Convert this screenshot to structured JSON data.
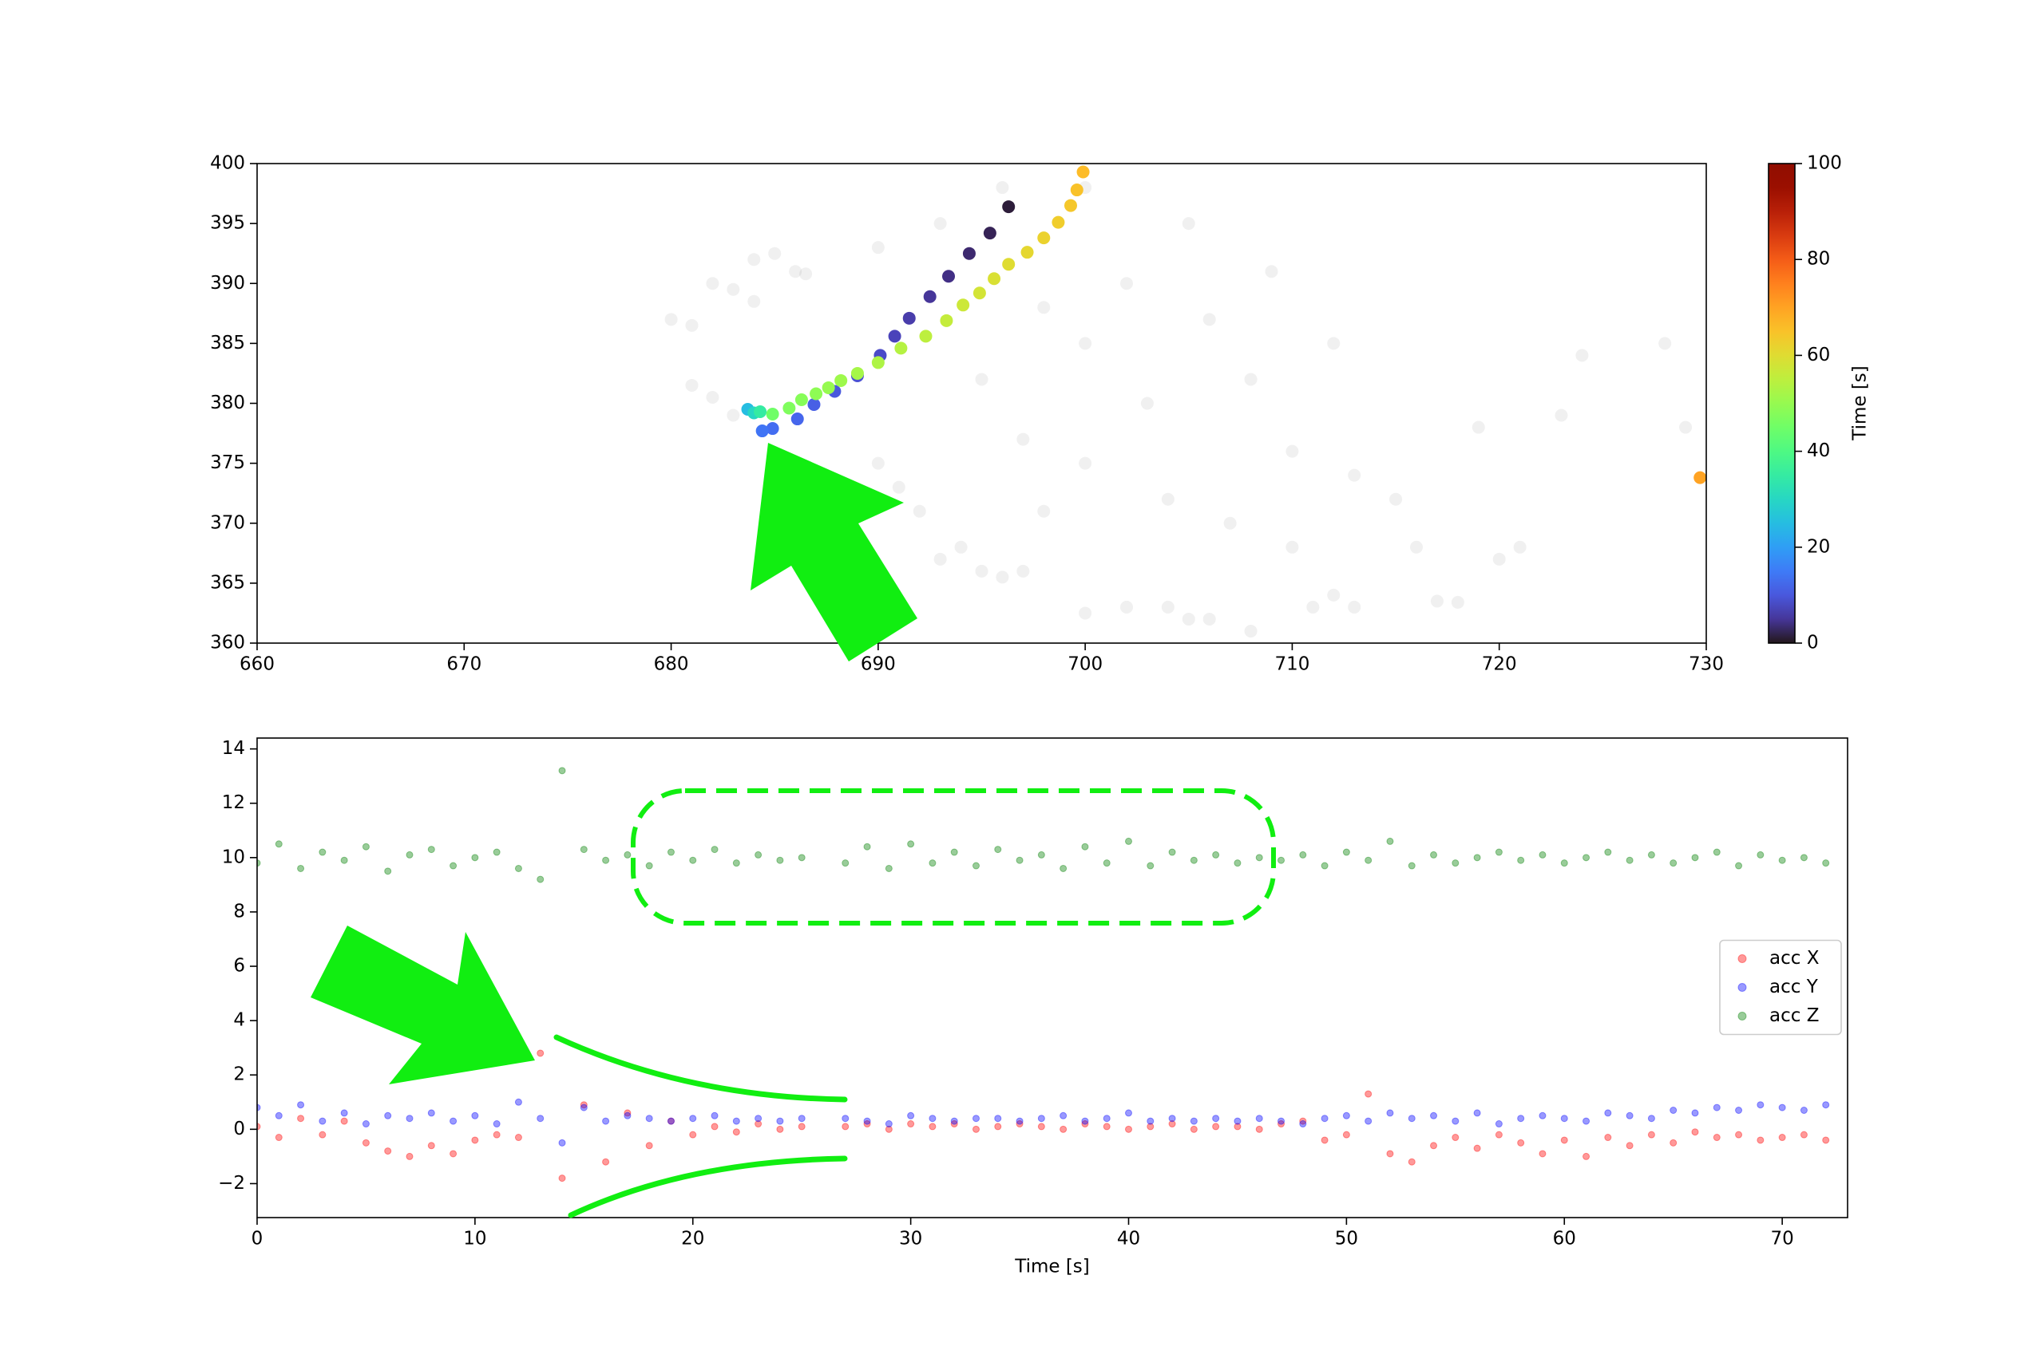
{
  "chart_data": [
    {
      "type": "scatter",
      "xlim": [
        660,
        730
      ],
      "ylim": [
        360,
        400
      ],
      "xticks": [
        660,
        670,
        680,
        690,
        700,
        710,
        720,
        730
      ],
      "yticks": [
        360,
        365,
        370,
        375,
        380,
        385,
        390,
        395,
        400
      ],
      "colorbar": {
        "label": "Time [s]",
        "lim": [
          0,
          100
        ],
        "ticks": [
          0,
          20,
          40,
          60,
          80,
          100
        ],
        "colormap": "turbo"
      },
      "series": [
        {
          "color": "#808080",
          "alpha": 0.12,
          "x": [
            680,
            681,
            683,
            682,
            684,
            685,
            686,
            686.5,
            684,
            681,
            682,
            683,
            690,
            691,
            692,
            694,
            695,
            696,
            697,
            693,
            700,
            702,
            704,
            705,
            706,
            708,
            711,
            712,
            713,
            717,
            718,
            720,
            721,
            700,
            705,
            702,
            698,
            695,
            700,
            703,
            708,
            710,
            713,
            715,
            704,
            700,
            697,
            707,
            710,
            716,
            719,
            723,
            724,
            728,
            729,
            706,
            709,
            712,
            698,
            690,
            693,
            696
          ],
          "y": [
            387,
            386.5,
            389.5,
            390,
            392,
            392.5,
            391,
            390.8,
            388.5,
            381.5,
            380.5,
            379,
            375,
            373,
            371,
            368,
            366,
            365.5,
            366,
            367,
            362.5,
            363,
            363,
            362,
            362,
            361,
            363,
            364,
            363,
            363.5,
            363.4,
            367,
            368,
            398,
            395,
            390,
            388,
            382,
            385,
            380,
            382,
            376,
            374,
            372,
            372,
            375,
            377,
            370,
            368,
            368,
            378,
            379,
            384,
            385,
            378,
            387,
            391,
            385,
            371,
            393,
            395,
            398
          ]
        },
        {
          "x": [
            696.3,
            695.4,
            694.4,
            693.4,
            692.5,
            691.5,
            690.8,
            690.1,
            689.0,
            687.9,
            686.9,
            686.1,
            684.9,
            684.4,
            683.7,
            684.0,
            684.3,
            684.9,
            685.7,
            686.3,
            687.0,
            687.6,
            688.2,
            689.0,
            690.0,
            691.1,
            692.3,
            693.3,
            694.1,
            694.9,
            695.6,
            696.3,
            697.2,
            698.0,
            698.7,
            699.3,
            699.6,
            699.9,
            729.7
          ],
          "y": [
            396.4,
            394.2,
            392.5,
            390.6,
            388.9,
            387.1,
            385.6,
            384.0,
            382.3,
            381.0,
            379.9,
            378.7,
            377.9,
            377.7,
            379.5,
            379.2,
            379.3,
            379.1,
            379.6,
            380.3,
            380.8,
            381.3,
            381.9,
            382.5,
            383.4,
            384.6,
            385.6,
            386.9,
            388.2,
            389.2,
            390.4,
            391.6,
            392.6,
            393.8,
            395.1,
            396.5,
            397.8,
            399.3,
            373.8
          ],
          "c": [
            1,
            2,
            3,
            4,
            5,
            6,
            7,
            8,
            9,
            10,
            11,
            12,
            13,
            14,
            25,
            30,
            35,
            45,
            47,
            48,
            49,
            50,
            51,
            52,
            53,
            54,
            55,
            56,
            57,
            58,
            59,
            60,
            61,
            62,
            63,
            64,
            65,
            66,
            70
          ]
        }
      ]
    },
    {
      "type": "scatter",
      "xlim": [
        0,
        73
      ],
      "ylim": [
        -3.25,
        14.4
      ],
      "xticks": [
        0,
        10,
        20,
        30,
        40,
        50,
        60,
        70
      ],
      "yticks": [
        {
          "value": -2,
          "label": "−2"
        },
        0,
        2,
        4,
        6,
        8,
        10,
        12,
        14
      ],
      "xlabel": "Time [s]",
      "legend": "center right",
      "x": [
        0,
        1,
        2,
        3,
        4,
        5,
        6,
        7,
        8,
        9,
        10,
        11,
        12,
        13,
        14,
        15,
        16,
        17,
        18,
        19,
        20,
        21,
        22,
        23,
        24,
        25,
        27,
        28,
        29,
        30,
        31,
        32,
        33,
        34,
        35,
        36,
        37,
        38,
        39,
        40,
        41,
        42,
        43,
        44,
        45,
        46,
        47,
        48,
        49,
        50,
        51,
        52,
        53,
        54,
        55,
        56,
        57,
        58,
        59,
        60,
        61,
        62,
        63,
        64,
        65,
        66,
        67,
        68,
        69,
        70,
        71,
        72
      ],
      "series": [
        {
          "name": "acc X",
          "color": "#ff0000",
          "alpha": 0.4,
          "values": [
            0.1,
            -0.3,
            0.4,
            -0.2,
            0.3,
            -0.5,
            -0.8,
            -1.0,
            -0.6,
            -0.9,
            -0.4,
            -0.2,
            -0.3,
            2.8,
            -1.8,
            0.9,
            -1.2,
            0.6,
            -0.6,
            0.3,
            -0.2,
            0.1,
            -0.1,
            0.2,
            0.0,
            0.1,
            0.1,
            0.2,
            0.0,
            0.2,
            0.1,
            0.2,
            0.0,
            0.1,
            0.2,
            0.1,
            0.0,
            0.2,
            0.1,
            0.0,
            0.1,
            0.2,
            0.0,
            0.1,
            0.1,
            0.0,
            0.2,
            0.3,
            -0.4,
            -0.2,
            1.3,
            -0.9,
            -1.2,
            -0.6,
            -0.3,
            -0.7,
            -0.2,
            -0.5,
            -0.9,
            -0.4,
            -1.0,
            -0.3,
            -0.6,
            -0.2,
            -0.5,
            -0.1,
            -0.3,
            -0.2,
            -0.4,
            -0.3,
            -0.2,
            -0.4
          ]
        },
        {
          "name": "acc Y",
          "color": "#0000ff",
          "alpha": 0.4,
          "values": [
            0.8,
            0.5,
            0.9,
            0.3,
            0.6,
            0.2,
            0.5,
            0.4,
            0.6,
            0.3,
            0.5,
            0.2,
            1.0,
            0.4,
            -0.5,
            0.8,
            0.3,
            0.5,
            0.4,
            0.3,
            0.4,
            0.5,
            0.3,
            0.4,
            0.3,
            0.4,
            0.4,
            0.3,
            0.2,
            0.5,
            0.4,
            0.3,
            0.4,
            0.4,
            0.3,
            0.4,
            0.5,
            0.3,
            0.4,
            0.6,
            0.3,
            0.4,
            0.3,
            0.4,
            0.3,
            0.4,
            0.3,
            0.2,
            0.4,
            0.5,
            0.3,
            0.6,
            0.4,
            0.5,
            0.3,
            0.6,
            0.2,
            0.4,
            0.5,
            0.4,
            0.3,
            0.6,
            0.5,
            0.4,
            0.7,
            0.6,
            0.8,
            0.7,
            0.9,
            0.8,
            0.7,
            0.9
          ]
        },
        {
          "name": "acc Z",
          "color": "#008000",
          "alpha": 0.4,
          "values": [
            9.8,
            10.5,
            9.6,
            10.2,
            9.9,
            10.4,
            9.5,
            10.1,
            10.3,
            9.7,
            10.0,
            10.2,
            9.6,
            9.2,
            13.2,
            10.3,
            9.9,
            10.1,
            9.7,
            10.2,
            9.9,
            10.3,
            9.8,
            10.1,
            9.9,
            10.0,
            9.8,
            10.4,
            9.6,
            10.5,
            9.8,
            10.2,
            9.7,
            10.3,
            9.9,
            10.1,
            9.6,
            10.4,
            9.8,
            10.6,
            9.7,
            10.2,
            9.9,
            10.1,
            9.8,
            10.0,
            9.9,
            10.1,
            9.7,
            10.2,
            9.9,
            10.6,
            9.7,
            10.1,
            9.8,
            10.0,
            10.2,
            9.9,
            10.1,
            9.8,
            10.0,
            10.2,
            9.9,
            10.1,
            9.8,
            10.0,
            10.2,
            9.7,
            10.1,
            9.9,
            10.0,
            9.8
          ]
        }
      ]
    }
  ]
}
